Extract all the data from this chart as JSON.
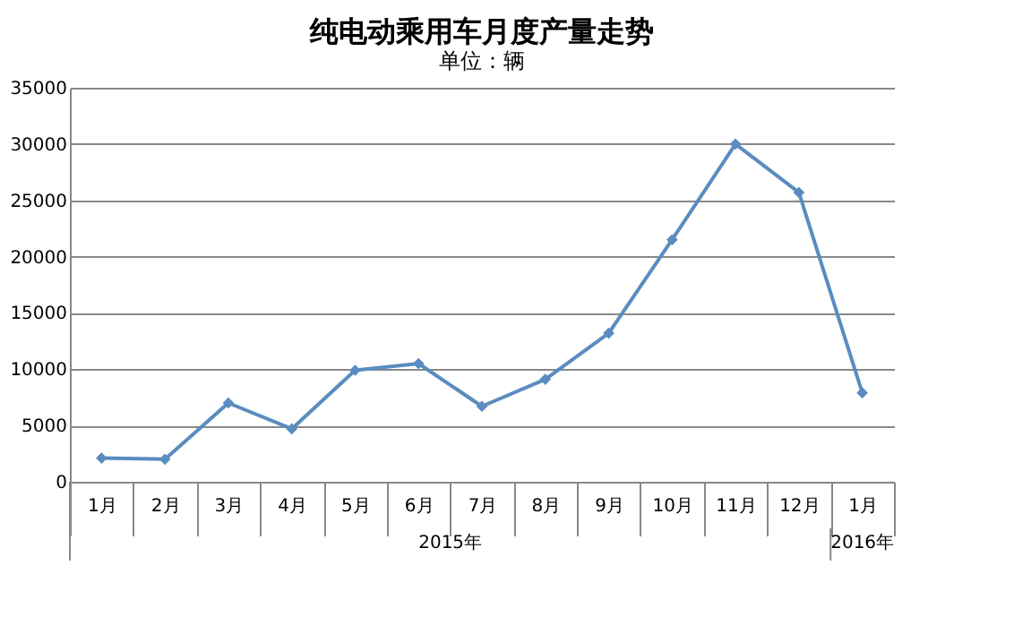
{
  "chart_data": {
    "type": "line",
    "title": "纯电动乘用车月度产量走势",
    "subtitle": "单位：辆",
    "categories": [
      "1月",
      "2月",
      "3月",
      "4月",
      "5月",
      "6月",
      "7月",
      "8月",
      "9月",
      "10月",
      "11月",
      "12月",
      "1月"
    ],
    "series": [
      {
        "color": "#5a8cbf",
        "values": [
          2100,
          2000,
          7000,
          4700,
          9900,
          10500,
          6700,
          9100,
          13200,
          21500,
          30000,
          25700,
          7900
        ]
      }
    ],
    "ylim": [
      0,
      35000
    ],
    "yticks": [
      0,
      5000,
      10000,
      15000,
      20000,
      25000,
      30000,
      35000
    ],
    "grid": "y",
    "marker": "diamond",
    "annotations": [
      "2015年",
      "2016年"
    ]
  }
}
